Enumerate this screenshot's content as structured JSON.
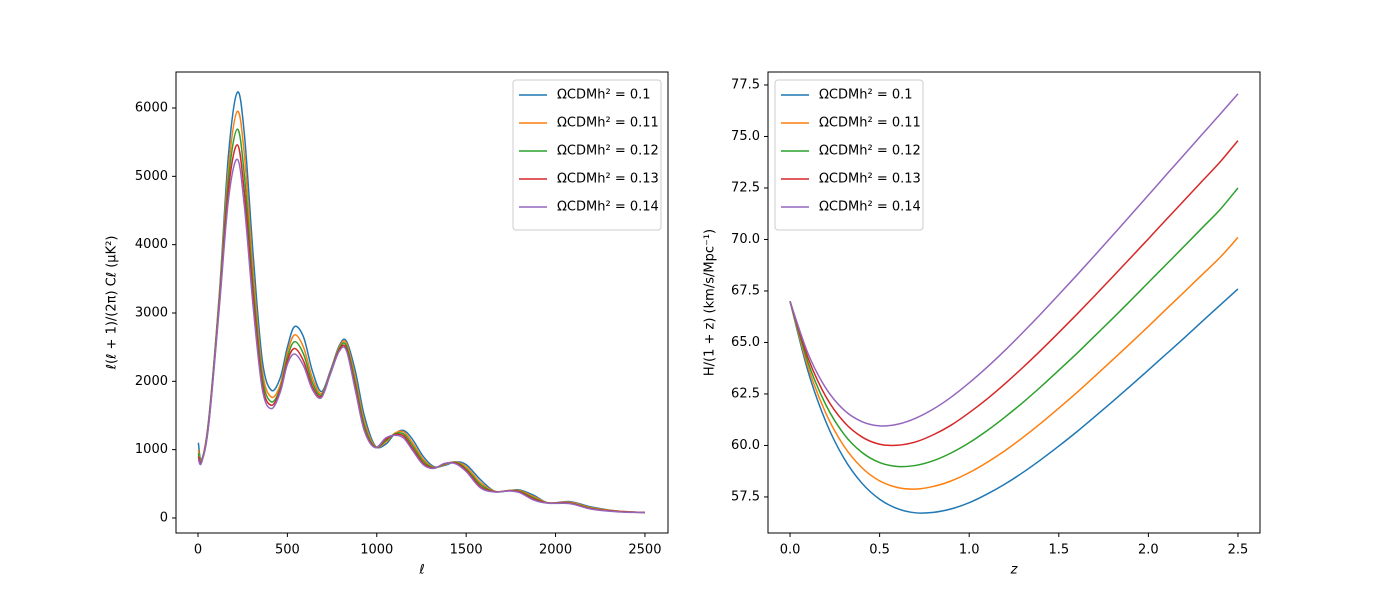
{
  "chart_data": [
    {
      "type": "line",
      "x_label": "ℓ",
      "y_label": "ℓ(ℓ + 1)/(2π) Cℓ (μK²)",
      "x": [
        2,
        20,
        60,
        120,
        170,
        220,
        260,
        310,
        360,
        410,
        460,
        500,
        540,
        590,
        640,
        690,
        740,
        790,
        830,
        880,
        930,
        990,
        1050,
        1100,
        1150,
        1200,
        1260,
        1320,
        1380,
        1440,
        1500,
        1580,
        1660,
        1740,
        1800,
        1880,
        1960,
        2080,
        2200,
        2350,
        2500
      ],
      "series": [
        {
          "name": "ΩCDMh² = 0.1",
          "color": "#1f77b4",
          "values": [
            1100,
            850,
            1450,
            3300,
            5300,
            6230,
            5600,
            3800,
            2300,
            1870,
            2050,
            2500,
            2800,
            2650,
            2150,
            1850,
            2150,
            2520,
            2590,
            2150,
            1500,
            1060,
            1080,
            1230,
            1280,
            1150,
            900,
            750,
            770,
            820,
            780,
            560,
            390,
            400,
            410,
            330,
            220,
            240,
            160,
            100,
            80
          ]
        },
        {
          "name": "ΩCDMh² = 0.11",
          "color": "#ff7f0e",
          "values": [
            1000,
            840,
            1420,
            3250,
            5100,
            5950,
            5300,
            3550,
            2150,
            1770,
            1950,
            2420,
            2680,
            2500,
            2050,
            1820,
            2130,
            2500,
            2560,
            2050,
            1420,
            1050,
            1110,
            1240,
            1260,
            1100,
            860,
            740,
            780,
            820,
            750,
            520,
            390,
            400,
            400,
            310,
            220,
            230,
            150,
            100,
            80
          ]
        },
        {
          "name": "ΩCDMh² = 0.12",
          "color": "#2ca02c",
          "values": [
            950,
            830,
            1400,
            3200,
            4950,
            5690,
            5000,
            3350,
            2050,
            1700,
            1900,
            2350,
            2580,
            2400,
            1980,
            1800,
            2120,
            2480,
            2520,
            1980,
            1360,
            1040,
            1130,
            1230,
            1230,
            1060,
            830,
            735,
            790,
            815,
            720,
            490,
            385,
            400,
            390,
            290,
            220,
            220,
            140,
            95,
            80
          ]
        },
        {
          "name": "ΩCDMh² = 0.13",
          "color": "#d62728",
          "values": [
            900,
            820,
            1380,
            3150,
            4800,
            5460,
            4750,
            3200,
            1950,
            1650,
            1870,
            2300,
            2480,
            2300,
            1920,
            1780,
            2110,
            2460,
            2480,
            1920,
            1310,
            1035,
            1150,
            1220,
            1200,
            1020,
            800,
            730,
            795,
            805,
            700,
            460,
            385,
            400,
            380,
            275,
            220,
            215,
            135,
            95,
            80
          ]
        },
        {
          "name": "ΩCDMh² = 0.14",
          "color": "#9467bd",
          "values": [
            860,
            810,
            1360,
            3100,
            4650,
            5250,
            4550,
            3050,
            1880,
            1600,
            1840,
            2250,
            2400,
            2230,
            1880,
            1760,
            2100,
            2440,
            2450,
            1870,
            1280,
            1030,
            1170,
            1210,
            1170,
            990,
            780,
            725,
            800,
            795,
            680,
            440,
            380,
            395,
            370,
            260,
            215,
            210,
            130,
            90,
            80
          ]
        }
      ],
      "xlim": [
        -123,
        2629
      ],
      "ylim": [
        -220,
        6527
      ],
      "xticks": [
        0,
        500,
        1000,
        1500,
        2000,
        2500
      ],
      "yticks": [
        0,
        1000,
        2000,
        3000,
        4000,
        5000,
        6000
      ],
      "grid": false,
      "legend": "upper right"
    },
    {
      "type": "line",
      "x_label": "z",
      "y_label": "H/(1 + z) (km/s/Mpc⁻¹)",
      "x": [
        0,
        0.1,
        0.2,
        0.3,
        0.4,
        0.5,
        0.6,
        0.7,
        0.8,
        0.9,
        1.0,
        1.1,
        1.2,
        1.3,
        1.4,
        1.5,
        1.6,
        1.7,
        1.8,
        1.9,
        2.0,
        2.1,
        2.2,
        2.3,
        2.4,
        2.5
      ],
      "series": [
        {
          "name": "ΩCDMh² = 0.1",
          "color": "#1f77b4",
          "values": [
            67,
            63.61,
            61.15,
            59.39,
            58.18,
            57.39,
            56.93,
            56.73,
            56.75,
            56.92,
            57.22,
            57.64,
            58.13,
            58.69,
            59.31,
            59.97,
            60.66,
            61.39,
            62.13,
            62.89,
            63.66,
            64.44,
            65.22,
            66.02,
            66.81,
            67.6
          ]
        },
        {
          "name": "ΩCDMh² = 0.11",
          "color": "#ff7f0e",
          "values": [
            67,
            63.83,
            61.56,
            59.98,
            58.93,
            58.28,
            57.96,
            57.88,
            58.01,
            58.28,
            58.68,
            59.18,
            59.75,
            60.39,
            61.08,
            61.81,
            62.56,
            63.35,
            64.15,
            64.96,
            65.78,
            66.62,
            67.45,
            68.29,
            69.13,
            70.1
          ]
        },
        {
          "name": "ΩCDMh² = 0.12",
          "color": "#2ca02c",
          "values": [
            67,
            64.04,
            61.97,
            60.56,
            59.67,
            59.17,
            58.98,
            59.03,
            59.26,
            59.64,
            60.13,
            60.72,
            61.38,
            62.09,
            62.85,
            63.65,
            64.46,
            65.31,
            66.16,
            67.03,
            67.91,
            68.79,
            69.67,
            70.56,
            71.45,
            72.5
          ]
        },
        {
          "name": "ΩCDMh² = 0.13",
          "color": "#d62728",
          "values": [
            67,
            64.26,
            62.37,
            61.15,
            60.42,
            60.06,
            60.01,
            60.17,
            60.52,
            60.99,
            61.59,
            62.26,
            63.0,
            63.79,
            64.62,
            65.48,
            66.36,
            67.26,
            68.18,
            69.1,
            70.03,
            70.97,
            71.9,
            72.83,
            73.76,
            74.8
          ]
        },
        {
          "name": "ΩCDMh² = 0.14",
          "color": "#9467bd",
          "values": [
            67,
            64.47,
            62.78,
            61.73,
            61.16,
            60.95,
            61.03,
            61.32,
            61.77,
            62.35,
            63.04,
            63.8,
            64.62,
            65.49,
            66.39,
            67.32,
            68.26,
            69.22,
            70.19,
            71.17,
            72.15,
            73.14,
            74.12,
            75.1,
            76.08,
            77.07
          ]
        }
      ],
      "xlim": [
        -0.123,
        2.623
      ],
      "ylim": [
        55.75,
        78.13
      ],
      "xticks": [
        {
          "value": 0,
          "label": "0.0"
        },
        0.5,
        {
          "value": 1,
          "label": "1.0"
        },
        1.5,
        {
          "value": 2,
          "label": "2.0"
        },
        2.5
      ],
      "yticks": [
        57.5,
        {
          "value": 60,
          "label": "60.0"
        },
        62.5,
        {
          "value": 65,
          "label": "65.0"
        },
        67.5,
        {
          "value": 70,
          "label": "70.0"
        },
        72.5,
        {
          "value": 75,
          "label": "75.0"
        },
        77.5
      ],
      "grid": false,
      "legend": "upper left"
    }
  ]
}
